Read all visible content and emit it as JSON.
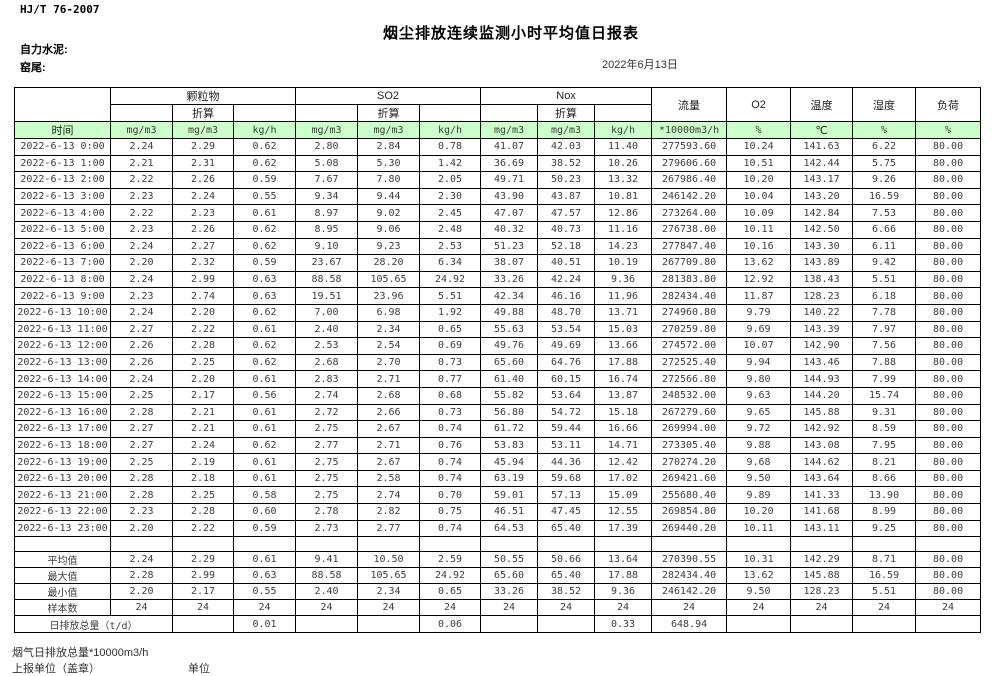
{
  "meta": {
    "standard": "HJ/T  76-2007",
    "title": "烟尘排放连续监测小时平均值日报表",
    "company": "自力水泥:",
    "station": "窑尾:",
    "date": "2022年6月13日"
  },
  "table": {
    "groups": [
      {
        "label": "颗粒物"
      },
      {
        "label": "SO2"
      },
      {
        "label": "Nox"
      }
    ],
    "zhesuan_label": "折算",
    "single_cols": [
      "流量",
      "O2",
      "温度",
      "湿度",
      "负荷"
    ],
    "unit_row": [
      "时间",
      "mg/m3",
      "mg/m3",
      "kg/h",
      "mg/m3",
      "mg/m3",
      "kg/h",
      "mg/m3",
      "mg/m3",
      "kg/h",
      "*10000m3/h",
      "%",
      "℃",
      "%",
      "%"
    ],
    "rows": [
      {
        "time": "2022-6-13 0:00",
        "values": [
          "2.24",
          "2.29",
          "0.62",
          "2.80",
          "2.84",
          "0.78",
          "41.07",
          "42.03",
          "11.40",
          "277593.60",
          "10.24",
          "141.63",
          "6.22",
          "80.00"
        ]
      },
      {
        "time": "2022-6-13 1:00",
        "values": [
          "2.21",
          "2.31",
          "0.62",
          "5.08",
          "5.30",
          "1.42",
          "36.69",
          "38.52",
          "10.26",
          "279606.60",
          "10.51",
          "142.44",
          "5.75",
          "80.00"
        ]
      },
      {
        "time": "2022-6-13 2:00",
        "values": [
          "2.22",
          "2.26",
          "0.59",
          "7.67",
          "7.80",
          "2.05",
          "49.71",
          "50.23",
          "13.32",
          "267986.40",
          "10.20",
          "143.17",
          "9.26",
          "80.00"
        ]
      },
      {
        "time": "2022-6-13 3:00",
        "values": [
          "2.23",
          "2.24",
          "0.55",
          "9.34",
          "9.44",
          "2.30",
          "43.90",
          "43.87",
          "10.81",
          "246142.20",
          "10.04",
          "143.20",
          "16.59",
          "80.00"
        ]
      },
      {
        "time": "2022-6-13 4:00",
        "values": [
          "2.22",
          "2.23",
          "0.61",
          "8.97",
          "9.02",
          "2.45",
          "47.07",
          "47.57",
          "12.86",
          "273264.00",
          "10.09",
          "142.84",
          "7.53",
          "80.00"
        ]
      },
      {
        "time": "2022-6-13 5:00",
        "values": [
          "2.23",
          "2.26",
          "0.62",
          "8.95",
          "9.06",
          "2.48",
          "40.32",
          "40.73",
          "11.16",
          "276738.00",
          "10.11",
          "142.50",
          "6.66",
          "80.00"
        ]
      },
      {
        "time": "2022-6-13 6:00",
        "values": [
          "2.24",
          "2.27",
          "0.62",
          "9.10",
          "9.23",
          "2.53",
          "51.23",
          "52.18",
          "14.23",
          "277847.40",
          "10.16",
          "143.30",
          "6.11",
          "80.00"
        ]
      },
      {
        "time": "2022-6-13 7:00",
        "values": [
          "2.20",
          "2.32",
          "0.59",
          "23.67",
          "28.20",
          "6.34",
          "38.07",
          "40.51",
          "10.19",
          "267709.80",
          "13.62",
          "143.89",
          "9.42",
          "80.00"
        ]
      },
      {
        "time": "2022-6-13 8:00",
        "values": [
          "2.24",
          "2.99",
          "0.63",
          "88.58",
          "105.65",
          "24.92",
          "33.26",
          "42.24",
          "9.36",
          "281383.80",
          "12.92",
          "138.43",
          "5.51",
          "80.00"
        ]
      },
      {
        "time": "2022-6-13 9:00",
        "values": [
          "2.23",
          "2.74",
          "0.63",
          "19.51",
          "23.96",
          "5.51",
          "42.34",
          "46.16",
          "11.96",
          "282434.40",
          "11.87",
          "128.23",
          "6.18",
          "80.00"
        ]
      },
      {
        "time": "2022-6-13 10:00",
        "values": [
          "2.24",
          "2.20",
          "0.62",
          "7.00",
          "6.98",
          "1.92",
          "49.88",
          "48.70",
          "13.71",
          "274960.80",
          "9.79",
          "140.22",
          "7.78",
          "80.00"
        ]
      },
      {
        "time": "2022-6-13 11:00",
        "values": [
          "2.27",
          "2.22",
          "0.61",
          "2.40",
          "2.34",
          "0.65",
          "55.63",
          "53.54",
          "15.03",
          "270259.80",
          "9.69",
          "143.39",
          "7.97",
          "80.00"
        ]
      },
      {
        "time": "2022-6-13 12:00",
        "values": [
          "2.26",
          "2.28",
          "0.62",
          "2.53",
          "2.54",
          "0.69",
          "49.76",
          "49.69",
          "13.66",
          "274572.00",
          "10.07",
          "142.90",
          "7.56",
          "80.00"
        ]
      },
      {
        "time": "2022-6-13 13:00",
        "values": [
          "2.26",
          "2.25",
          "0.62",
          "2.68",
          "2.70",
          "0.73",
          "65.60",
          "64.76",
          "17.88",
          "272525.40",
          "9.94",
          "143.46",
          "7.88",
          "80.00"
        ]
      },
      {
        "time": "2022-6-13 14:00",
        "values": [
          "2.24",
          "2.20",
          "0.61",
          "2.83",
          "2.71",
          "0.77",
          "61.40",
          "60.15",
          "16.74",
          "272566.80",
          "9.80",
          "144.93",
          "7.99",
          "80.00"
        ]
      },
      {
        "time": "2022-6-13 15:00",
        "values": [
          "2.25",
          "2.17",
          "0.56",
          "2.74",
          "2.68",
          "0.68",
          "55.82",
          "53.64",
          "13.87",
          "248532.00",
          "9.63",
          "144.20",
          "15.74",
          "80.00"
        ]
      },
      {
        "time": "2022-6-13 16:00",
        "values": [
          "2.28",
          "2.21",
          "0.61",
          "2.72",
          "2.66",
          "0.73",
          "56.80",
          "54.72",
          "15.18",
          "267279.60",
          "9.65",
          "145.88",
          "9.31",
          "80.00"
        ]
      },
      {
        "time": "2022-6-13 17:00",
        "values": [
          "2.27",
          "2.21",
          "0.61",
          "2.75",
          "2.67",
          "0.74",
          "61.72",
          "59.44",
          "16.66",
          "269994.00",
          "9.72",
          "142.92",
          "8.59",
          "80.00"
        ]
      },
      {
        "time": "2022-6-13 18:00",
        "values": [
          "2.27",
          "2.24",
          "0.62",
          "2.77",
          "2.71",
          "0.76",
          "53.83",
          "53.11",
          "14.71",
          "273305.40",
          "9.88",
          "143.08",
          "7.95",
          "80.00"
        ]
      },
      {
        "time": "2022-6-13 19:00",
        "values": [
          "2.25",
          "2.19",
          "0.61",
          "2.75",
          "2.67",
          "0.74",
          "45.94",
          "44.36",
          "12.42",
          "270274.20",
          "9.68",
          "144.62",
          "8.21",
          "80.00"
        ]
      },
      {
        "time": "2022-6-13 20:00",
        "values": [
          "2.28",
          "2.18",
          "0.61",
          "2.75",
          "2.58",
          "0.74",
          "63.19",
          "59.68",
          "17.02",
          "269421.60",
          "9.50",
          "143.64",
          "8.66",
          "80.00"
        ]
      },
      {
        "time": "2022-6-13 21:00",
        "values": [
          "2.28",
          "2.25",
          "0.58",
          "2.75",
          "2.74",
          "0.70",
          "59.01",
          "57.13",
          "15.09",
          "255680.40",
          "9.89",
          "141.33",
          "13.90",
          "80.00"
        ]
      },
      {
        "time": "2022-6-13 22:00",
        "values": [
          "2.23",
          "2.28",
          "0.60",
          "2.78",
          "2.82",
          "0.75",
          "46.51",
          "47.45",
          "12.55",
          "269854.80",
          "10.20",
          "141.68",
          "8.99",
          "80.00"
        ]
      },
      {
        "time": "2022-6-13 23:00",
        "values": [
          "2.20",
          "2.22",
          "0.59",
          "2.73",
          "2.77",
          "0.74",
          "64.53",
          "65.40",
          "17.39",
          "269440.20",
          "10.11",
          "143.11",
          "9.25",
          "80.00"
        ]
      }
    ],
    "summary": [
      {
        "label": "平均值",
        "values": [
          "2.24",
          "2.29",
          "0.61",
          "9.41",
          "10.50",
          "2.59",
          "50.55",
          "50.66",
          "13.64",
          "270390.55",
          "10.31",
          "142.29",
          "8.71",
          "80.00"
        ]
      },
      {
        "label": "最大值",
        "values": [
          "2.28",
          "2.99",
          "0.63",
          "88.58",
          "105.65",
          "24.92",
          "65.60",
          "65.40",
          "17.88",
          "282434.40",
          "13.62",
          "145.88",
          "16.59",
          "80.00"
        ]
      },
      {
        "label": "最小值",
        "values": [
          "2.20",
          "2.17",
          "0.55",
          "2.40",
          "2.34",
          "0.65",
          "33.26",
          "38.52",
          "9.36",
          "246142.20",
          "9.50",
          "128.23",
          "5.51",
          "80.00"
        ]
      },
      {
        "label": "样本数",
        "values": [
          "24",
          "24",
          "24",
          "24",
          "24",
          "24",
          "24",
          "24",
          "24",
          "24",
          "24",
          "24",
          "24",
          "24"
        ]
      }
    ],
    "total_row": {
      "label": "日排放总量（t/d）",
      "values": [
        "",
        "0.01",
        "",
        "",
        "0.06",
        "",
        "",
        "0.33",
        "648.94",
        "",
        "",
        "",
        ""
      ]
    }
  },
  "footer": {
    "line1": "烟气日排放总量*10000m3/h",
    "line2_left": "上报单位（盖章）",
    "line2_right": "单位"
  },
  "colors": {
    "header_green": "#ccffcc"
  }
}
